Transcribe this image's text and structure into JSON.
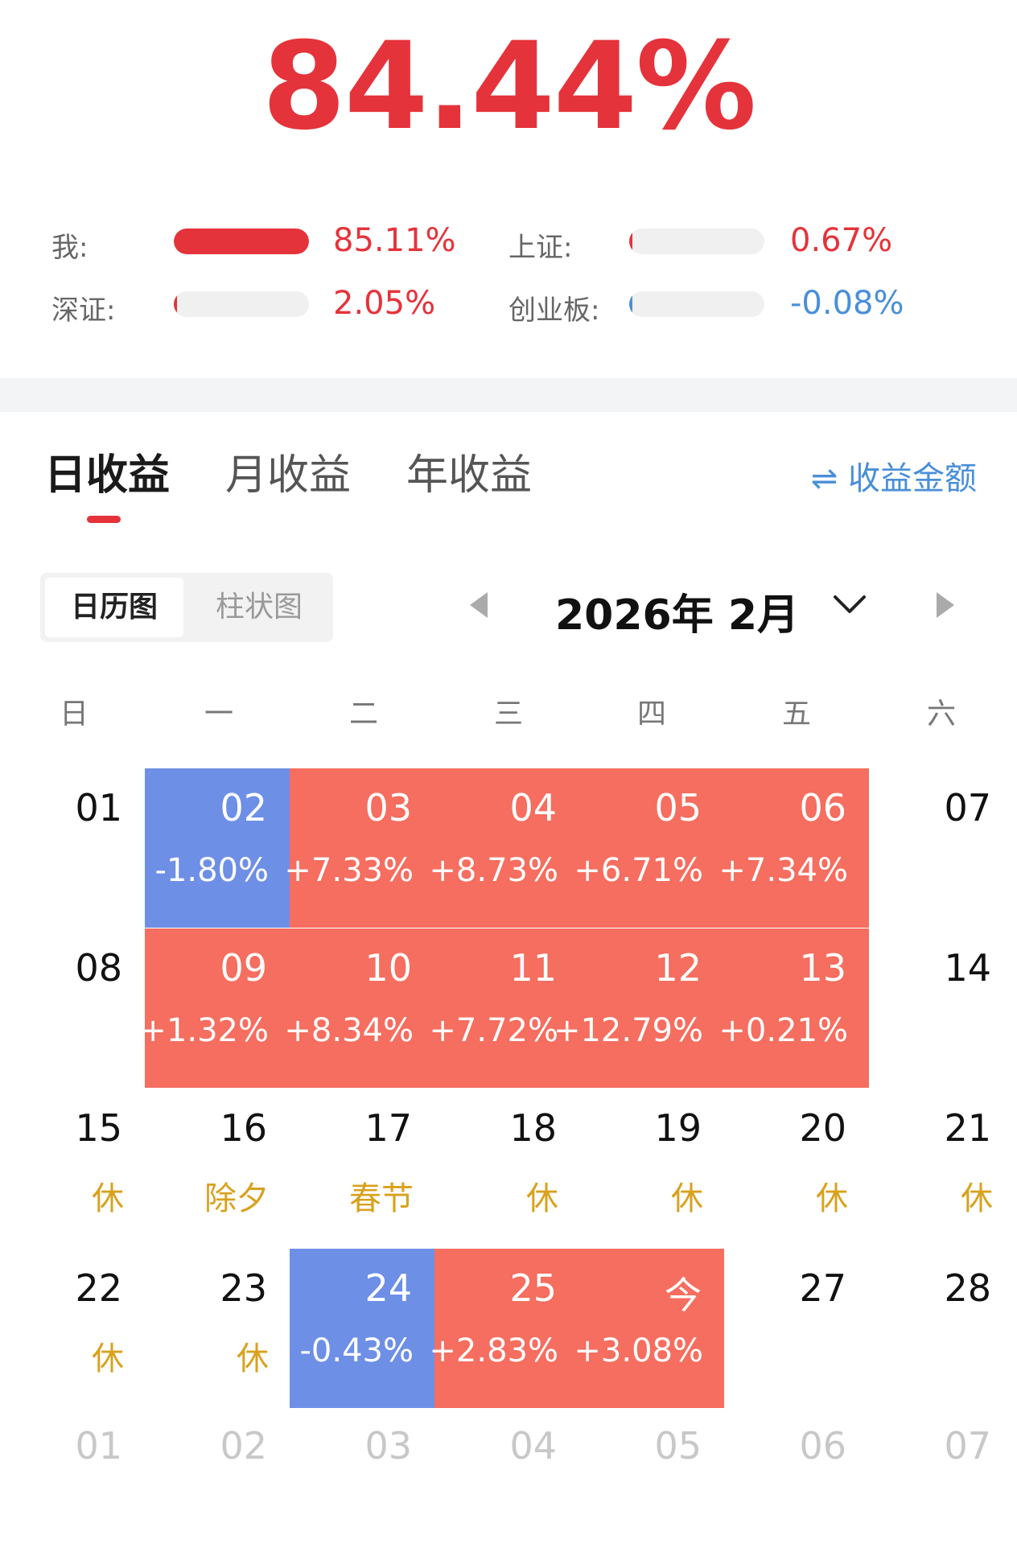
{
  "total_return": "84.44%",
  "benchmarks": [
    {
      "label": "我:",
      "value": "85.11%",
      "fraction": 1.0,
      "color": "#e5333b",
      "value_color": "#e5333b"
    },
    {
      "label": "上证:",
      "value": "0.67%",
      "fraction": 0.008,
      "color": "#e5333b",
      "value_color": "#e5333b"
    },
    {
      "label": "深证:",
      "value": "2.05%",
      "fraction": 0.024,
      "color": "#e5333b",
      "value_color": "#e5333b"
    },
    {
      "label": "创业板:",
      "value": "-0.08%",
      "fraction": 0.001,
      "color": "#4a8fd8",
      "value_color": "#4a8fd8"
    }
  ],
  "tabs": [
    {
      "label": "日收益",
      "active": true
    },
    {
      "label": "月收益",
      "active": false
    },
    {
      "label": "年收益",
      "active": false
    }
  ],
  "switch_label": "⇌ 收益金额",
  "view_toggle": {
    "calendar": "日历图",
    "bar": "柱状图"
  },
  "month_title": "2026年 2月",
  "weekdays": [
    "日",
    "一",
    "二",
    "三",
    "四",
    "五",
    "六"
  ],
  "colors": {
    "gain": "#f56e5f",
    "loss": "#6e8fe6",
    "holiday": "#d9a11c",
    "accent": "#e5333b"
  },
  "weeks": [
    [
      {
        "day": "01",
        "sub": "",
        "type": "none"
      },
      {
        "day": "02",
        "sub": "-1.80%",
        "type": "down"
      },
      {
        "day": "03",
        "sub": "+7.33%",
        "type": "up"
      },
      {
        "day": "04",
        "sub": "+8.73%",
        "type": "up"
      },
      {
        "day": "05",
        "sub": "+6.71%",
        "type": "up"
      },
      {
        "day": "06",
        "sub": "+7.34%",
        "type": "up"
      },
      {
        "day": "07",
        "sub": "",
        "type": "none"
      }
    ],
    [
      {
        "day": "08",
        "sub": "",
        "type": "none"
      },
      {
        "day": "09",
        "sub": "+1.32%",
        "type": "up"
      },
      {
        "day": "10",
        "sub": "+8.34%",
        "type": "up"
      },
      {
        "day": "11",
        "sub": "+7.72%",
        "type": "up"
      },
      {
        "day": "12",
        "sub": "+12.79%",
        "type": "up"
      },
      {
        "day": "13",
        "sub": "+0.21%",
        "type": "up"
      },
      {
        "day": "14",
        "sub": "",
        "type": "none"
      }
    ],
    [
      {
        "day": "15",
        "sub": "休",
        "type": "holiday"
      },
      {
        "day": "16",
        "sub": "除夕",
        "type": "holiday"
      },
      {
        "day": "17",
        "sub": "春节",
        "type": "holiday"
      },
      {
        "day": "18",
        "sub": "休",
        "type": "holiday"
      },
      {
        "day": "19",
        "sub": "休",
        "type": "holiday"
      },
      {
        "day": "20",
        "sub": "休",
        "type": "holiday"
      },
      {
        "day": "21",
        "sub": "休",
        "type": "holiday"
      }
    ],
    [
      {
        "day": "22",
        "sub": "休",
        "type": "holiday"
      },
      {
        "day": "23",
        "sub": "休",
        "type": "holiday"
      },
      {
        "day": "24",
        "sub": "-0.43%",
        "type": "down"
      },
      {
        "day": "25",
        "sub": "+2.83%",
        "type": "up"
      },
      {
        "day": "今",
        "sub": "+3.08%",
        "type": "up"
      },
      {
        "day": "27",
        "sub": "",
        "type": "none"
      },
      {
        "day": "28",
        "sub": "",
        "type": "none"
      }
    ]
  ],
  "next_month_days": [
    "01",
    "02",
    "03",
    "04",
    "05",
    "06",
    "07"
  ]
}
